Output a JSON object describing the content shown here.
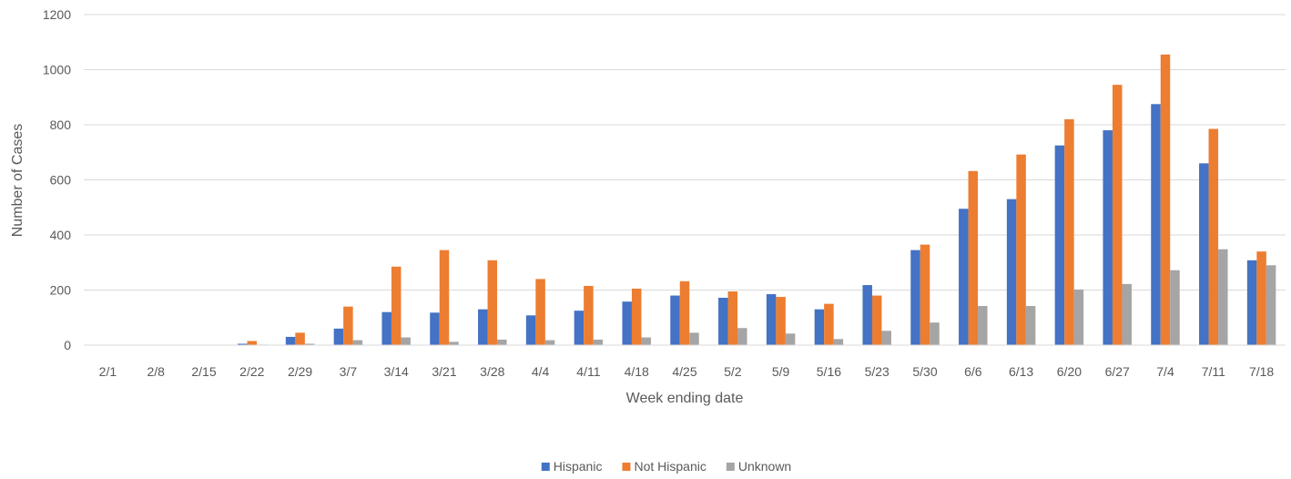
{
  "chart_data": {
    "type": "bar",
    "title": "",
    "xlabel": "Week ending date",
    "ylabel": "Number of Cases",
    "ylim": [
      0,
      1200
    ],
    "yticks": [
      0,
      200,
      400,
      600,
      800,
      1000,
      1200
    ],
    "grid": true,
    "legend_position": "bottom",
    "categories": [
      "2/1",
      "2/8",
      "2/15",
      "2/22",
      "2/29",
      "3/7",
      "3/14",
      "3/21",
      "3/28",
      "4/4",
      "4/11",
      "4/18",
      "4/25",
      "5/2",
      "5/9",
      "5/16",
      "5/23",
      "5/30",
      "6/6",
      "6/13",
      "6/20",
      "6/27",
      "7/4",
      "7/11",
      "7/18"
    ],
    "series": [
      {
        "name": "Hispanic",
        "color": "#4472C4",
        "values": [
          0,
          0,
          0,
          5,
          30,
          60,
          120,
          118,
          130,
          108,
          125,
          158,
          180,
          172,
          185,
          130,
          218,
          345,
          495,
          530,
          725,
          780,
          875,
          660,
          308
        ]
      },
      {
        "name": "Not Hispanic",
        "color": "#ED7D31",
        "values": [
          0,
          0,
          0,
          15,
          45,
          140,
          285,
          345,
          308,
          240,
          215,
          205,
          232,
          195,
          175,
          150,
          180,
          365,
          632,
          692,
          820,
          945,
          1055,
          785,
          340
        ]
      },
      {
        "name": "Unknown",
        "color": "#A5A5A5",
        "values": [
          0,
          0,
          0,
          2,
          5,
          18,
          28,
          12,
          20,
          18,
          20,
          28,
          45,
          62,
          42,
          22,
          52,
          82,
          142,
          142,
          202,
          222,
          272,
          348,
          290
        ]
      }
    ]
  }
}
